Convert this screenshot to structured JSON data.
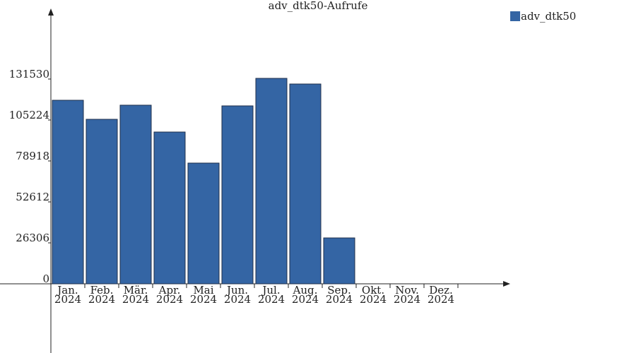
{
  "chart_data": {
    "type": "bar",
    "title": "adv_dtk50-Aufrufe",
    "categories": [
      "Jan. 2024",
      "Feb. 2024",
      "Mär. 2024",
      "Apr. 2024",
      "Mai 2024",
      "Jun. 2024",
      "Jul. 2024",
      "Aug. 2024",
      "Sep. 2024",
      "Okt. 2024",
      "Nov. 2024",
      "Dez. 2024"
    ],
    "series": [
      {
        "name": "adv_dtk50",
        "color": "#3465a4",
        "values": [
          117900,
          105670,
          114740,
          97500,
          77550,
          114290,
          131970,
          128340,
          29480,
          null,
          null,
          null
        ]
      }
    ],
    "ylim": [
      0,
      174000
    ],
    "yticks": [
      0,
      26306,
      52612,
      78918,
      105224,
      131530
    ],
    "legend": "top-right"
  }
}
